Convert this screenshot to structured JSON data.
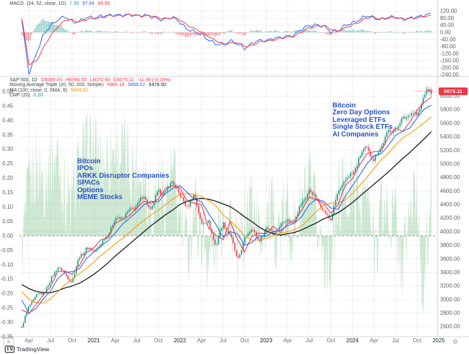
{
  "app": {
    "watermark_glyph": "TV",
    "watermark_text": "TradingView"
  },
  "colors": {
    "up": "#089981",
    "down": "#F23645",
    "ma20": "#F23645",
    "ma50": "#2962FF",
    "ma100": "#FF9800",
    "ma200": "#151515",
    "macd_line": "#2962FF",
    "signal_line": "#F23645",
    "hist_up": "#26A69A",
    "hist_down": "#F23645",
    "cmf_fill": "#6bb878",
    "cmf_value": "#089981",
    "annotation": "#2a52c8",
    "axis_text": "#5a5e69",
    "flag_bg": "#F23645",
    "grid": "rgba(42,46,57,0.07)",
    "separator": "#d1d4dc"
  },
  "pane_macd": {
    "legend": {
      "title": "MACD",
      "params": "(24, 52, close, 1D)",
      "hist_value": "7.98",
      "macd_value": "97.94",
      "signal_value": "89.96"
    },
    "y_ticks": [
      120,
      80,
      40,
      0,
      -40,
      -80,
      -120,
      -160,
      -200,
      -240
    ],
    "y_range": [
      -245,
      175
    ]
  },
  "pane_price": {
    "legend_rows": {
      "symbol": {
        "label": "S&P 500, 1D",
        "o": "O6089.03",
        "h": "H6094.55",
        "l": "L6070.90",
        "c": "C6075.11",
        "chg": "-11.38 (-0.19%)"
      },
      "ma_triple": {
        "label": "Moving Average Triple (20, 50, 200, Simple)",
        "v20": "5985.18",
        "v50": "5866.52",
        "v200": "5476.50"
      },
      "ma100": {
        "label": "MA (100, close, 0, SMA, 9)",
        "v": "5694.92"
      },
      "cmf": {
        "label": "CMF (20)",
        "v": "0.20"
      }
    },
    "price_flag": "6075.11",
    "y_ticks": [
      6000,
      5800,
      5600,
      5400,
      5200,
      5000,
      4800,
      4600,
      4400,
      4200,
      4000,
      3800,
      3600,
      3400,
      3200,
      3000,
      2800,
      2600
    ],
    "y_range": [
      2450,
      6280
    ],
    "cmf_ticks": [
      0.5,
      0.45,
      0.4,
      0.35,
      0.3,
      0.25,
      0.2,
      0.15,
      0.1,
      0.05,
      0.0,
      -0.05,
      -0.1,
      -0.15,
      -0.2,
      -0.25,
      -0.3,
      -0.35
    ],
    "cmf_range": [
      -0.35,
      0.55
    ]
  },
  "annotations": {
    "era1": {
      "lines": [
        "Bitcoin",
        "IPOs",
        "ARKK Disruptor Companies",
        "SPACs",
        "Options",
        "MEME Stocks"
      ]
    },
    "era2": {
      "lines": [
        "Bitcoin",
        "Zero Day Options",
        "Leveraged ETFs",
        "Single Stock ETFs",
        "AI Companies"
      ]
    }
  },
  "x_axis": {
    "labels": [
      {
        "text": "Apr",
        "m": 1
      },
      {
        "text": "Jul",
        "m": 4
      },
      {
        "text": "Oct",
        "m": 7
      },
      {
        "text": "2021",
        "m": 10,
        "year": true
      },
      {
        "text": "Apr",
        "m": 13
      },
      {
        "text": "Jul",
        "m": 16
      },
      {
        "text": "Oct",
        "m": 19
      },
      {
        "text": "2022",
        "m": 22,
        "year": true
      },
      {
        "text": "Apr",
        "m": 25
      },
      {
        "text": "Jul",
        "m": 28
      },
      {
        "text": "Oct",
        "m": 31
      },
      {
        "text": "2023",
        "m": 34,
        "year": true
      },
      {
        "text": "Apr",
        "m": 37
      },
      {
        "text": "Jul",
        "m": 40
      },
      {
        "text": "Oct",
        "m": 43
      },
      {
        "text": "2024",
        "m": 46,
        "year": true
      },
      {
        "text": "Apr",
        "m": 49
      },
      {
        "text": "Jul",
        "m": 52
      },
      {
        "text": "Oct",
        "m": 55
      },
      {
        "text": "2025",
        "m": 58,
        "year": true
      }
    ]
  },
  "chart_data": [
    {
      "pane": "macd",
      "type": "line",
      "title": "MACD (24, 52, close, 1D)",
      "ylim": [
        -245,
        175
      ],
      "x": [
        "2020-03",
        "2020-04",
        "2020-05",
        "2020-06",
        "2020-07",
        "2020-08",
        "2020-09",
        "2020-10",
        "2020-11",
        "2020-12",
        "2021-01",
        "2021-02",
        "2021-03",
        "2021-04",
        "2021-05",
        "2021-06",
        "2021-07",
        "2021-08",
        "2021-09",
        "2021-10",
        "2021-11",
        "2021-12",
        "2022-01",
        "2022-02",
        "2022-03",
        "2022-04",
        "2022-05",
        "2022-06",
        "2022-07",
        "2022-08",
        "2022-09",
        "2022-10",
        "2022-11",
        "2022-12",
        "2023-01",
        "2023-02",
        "2023-03",
        "2023-04",
        "2023-05",
        "2023-06",
        "2023-07",
        "2023-08",
        "2023-09",
        "2023-10",
        "2023-11",
        "2023-12",
        "2024-01",
        "2024-02",
        "2024-03",
        "2024-04",
        "2024-05",
        "2024-06",
        "2024-07",
        "2024-08",
        "2024-09",
        "2024-10",
        "2024-11",
        "2024-12"
      ],
      "series": [
        {
          "name": "MACD",
          "style": "line",
          "color": "#2962FF",
          "values": [
            60,
            -230,
            -120,
            -20,
            40,
            75,
            85,
            60,
            65,
            80,
            85,
            95,
            90,
            100,
            100,
            95,
            95,
            100,
            85,
            75,
            80,
            80,
            60,
            20,
            0,
            -10,
            -40,
            -70,
            -70,
            -45,
            -70,
            -90,
            -60,
            -50,
            -45,
            -30,
            -35,
            -20,
            -10,
            15,
            40,
            45,
            30,
            5,
            10,
            35,
            55,
            75,
            90,
            85,
            75,
            80,
            90,
            75,
            75,
            90,
            100,
            97.94
          ]
        },
        {
          "name": "Signal",
          "style": "line",
          "color": "#F23645",
          "values": [
            80,
            -180,
            -160,
            -90,
            -20,
            35,
            65,
            70,
            62,
            70,
            78,
            86,
            90,
            94,
            98,
            97,
            95,
            97,
            92,
            82,
            79,
            80,
            72,
            45,
            18,
            2,
            -20,
            -50,
            -65,
            -57,
            -60,
            -78,
            -72,
            -58,
            -50,
            -40,
            -36,
            -28,
            -17,
            0,
            25,
            38,
            36,
            18,
            10,
            22,
            42,
            62,
            80,
            85,
            79,
            78,
            85,
            80,
            75,
            83,
            93,
            89.96
          ]
        },
        {
          "name": "Histogram",
          "style": "histogram",
          "color_up": "#26A69A",
          "color_down": "#F23645",
          "note": "MACD minus Signal"
        }
      ]
    },
    {
      "pane": "price",
      "type": "candlestick",
      "title": "S&P 500, 1D with MA(20,50,100,200) and CMF(20)",
      "ylim": [
        2450,
        6280
      ],
      "cmf_ylim": [
        -0.35,
        0.55
      ],
      "x": [
        "2020-03",
        "2020-04",
        "2020-05",
        "2020-06",
        "2020-07",
        "2020-08",
        "2020-09",
        "2020-10",
        "2020-11",
        "2020-12",
        "2021-01",
        "2021-02",
        "2021-03",
        "2021-04",
        "2021-05",
        "2021-06",
        "2021-07",
        "2021-08",
        "2021-09",
        "2021-10",
        "2021-11",
        "2021-12",
        "2022-01",
        "2022-02",
        "2022-03",
        "2022-04",
        "2022-05",
        "2022-06",
        "2022-07",
        "2022-08",
        "2022-09",
        "2022-10",
        "2022-11",
        "2022-12",
        "2023-01",
        "2023-02",
        "2023-03",
        "2023-04",
        "2023-05",
        "2023-06",
        "2023-07",
        "2023-08",
        "2023-09",
        "2023-10",
        "2023-11",
        "2023-12",
        "2024-01",
        "2024-02",
        "2024-03",
        "2024-04",
        "2024-05",
        "2024-06",
        "2024-07",
        "2024-08",
        "2024-09",
        "2024-10",
        "2024-11",
        "2024-12"
      ],
      "series": [
        {
          "name": "S&P 500 close",
          "style": "candles",
          "values": [
            2585,
            2912,
            3044,
            3100,
            3271,
            3500,
            3363,
            3270,
            3622,
            3756,
            3714,
            3811,
            3973,
            4181,
            4204,
            4297,
            4395,
            4523,
            4308,
            4605,
            4567,
            4766,
            4516,
            4374,
            4530,
            4132,
            4132,
            3785,
            4130,
            3955,
            3586,
            3872,
            4080,
            3840,
            4077,
            3970,
            4109,
            4169,
            4180,
            4450,
            4589,
            4508,
            4288,
            4194,
            4568,
            4770,
            4846,
            5096,
            5254,
            5036,
            5278,
            5460,
            5522,
            5648,
            5762,
            5705,
            6032,
            6075.11
          ]
        },
        {
          "name": "MA 20",
          "style": "line",
          "color": "#F23645",
          "values": [
            2850,
            2790,
            2930,
            3070,
            3185,
            3410,
            3420,
            3370,
            3500,
            3690,
            3760,
            3880,
            3910,
            4120,
            4180,
            4240,
            4350,
            4450,
            4420,
            4480,
            4640,
            4680,
            4650,
            4450,
            4420,
            4400,
            4050,
            3950,
            3880,
            4150,
            3890,
            3700,
            3930,
            3980,
            3970,
            4080,
            3990,
            4120,
            4150,
            4330,
            4510,
            4470,
            4420,
            4270,
            4400,
            4680,
            4780,
            4980,
            5150,
            5180,
            5190,
            5390,
            5530,
            5480,
            5620,
            5790,
            5910,
            5985.18
          ]
        },
        {
          "name": "MA 50",
          "style": "line",
          "color": "#2962FF",
          "values": [
            2990,
            2800,
            2870,
            3010,
            3125,
            3310,
            3400,
            3410,
            3450,
            3605,
            3700,
            3790,
            3865,
            3980,
            4110,
            4200,
            4290,
            4400,
            4450,
            4440,
            4560,
            4640,
            4680,
            4580,
            4480,
            4440,
            4270,
            4110,
            3920,
            4000,
            3970,
            3800,
            3840,
            3940,
            3930,
            4000,
            4020,
            4090,
            4130,
            4230,
            4400,
            4480,
            4450,
            4350,
            4330,
            4520,
            4680,
            4830,
            5000,
            5120,
            5150,
            5270,
            5420,
            5480,
            5530,
            5680,
            5810,
            5866.52
          ]
        },
        {
          "name": "MA 100",
          "style": "line",
          "color": "#FF9800",
          "values": [
            3120,
            3000,
            2950,
            2950,
            3010,
            3110,
            3220,
            3300,
            3380,
            3460,
            3550,
            3650,
            3730,
            3820,
            3900,
            3990,
            4080,
            4170,
            4250,
            4320,
            4400,
            4480,
            4550,
            4570,
            4550,
            4520,
            4460,
            4380,
            4250,
            4160,
            4060,
            3940,
            3870,
            3880,
            3900,
            3940,
            3980,
            4000,
            4030,
            4090,
            4190,
            4300,
            4390,
            4420,
            4420,
            4470,
            4560,
            4680,
            4800,
            4930,
            5060,
            5160,
            5280,
            5380,
            5450,
            5530,
            5610,
            5694.92
          ]
        },
        {
          "name": "MA 200",
          "style": "line",
          "color": "#151515",
          "values": [
            3220,
            3160,
            3120,
            3100,
            3100,
            3130,
            3170,
            3200,
            3240,
            3300,
            3370,
            3450,
            3540,
            3640,
            3730,
            3820,
            3910,
            4000,
            4090,
            4170,
            4250,
            4320,
            4400,
            4450,
            4480,
            4490,
            4480,
            4450,
            4410,
            4370,
            4300,
            4220,
            4150,
            4070,
            4010,
            3970,
            3950,
            3970,
            3990,
            4030,
            4080,
            4130,
            4190,
            4230,
            4280,
            4350,
            4430,
            4520,
            4610,
            4700,
            4790,
            4880,
            4980,
            5080,
            5170,
            5270,
            5370,
            5476.5
          ]
        },
        {
          "name": "CMF 20",
          "style": "area",
          "color": "#6bb878",
          "axis": "left",
          "values": [
            -0.05,
            0.15,
            0.25,
            0.2,
            0.25,
            0.28,
            0.15,
            0.1,
            0.25,
            0.28,
            0.3,
            0.25,
            0.28,
            0.3,
            0.28,
            0.25,
            0.22,
            0.25,
            0.1,
            0.18,
            0.15,
            0.22,
            0.05,
            -0.05,
            0.1,
            0.02,
            -0.08,
            -0.05,
            0.1,
            0.08,
            -0.1,
            0.05,
            0.15,
            0.0,
            0.08,
            0.05,
            0.02,
            0.08,
            0.02,
            0.12,
            0.15,
            0.05,
            -0.05,
            -0.08,
            0.12,
            0.18,
            0.15,
            0.12,
            0.15,
            -0.05,
            0.1,
            0.08,
            0.05,
            -0.12,
            0.1,
            0.12,
            -0.2,
            0.2
          ]
        }
      ]
    }
  ]
}
